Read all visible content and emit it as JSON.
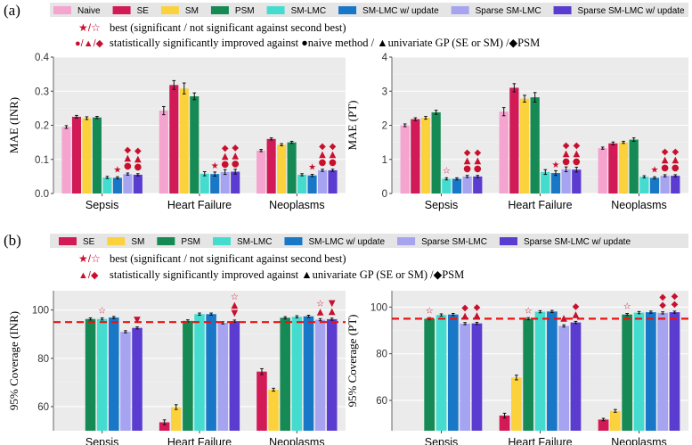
{
  "panel_a": {
    "label": "(a)",
    "legend": [
      {
        "name": "Naive",
        "color": "#f5a3cf"
      },
      {
        "name": "SE",
        "color": "#d11a56"
      },
      {
        "name": "SM",
        "color": "#fbd23c"
      },
      {
        "name": "PSM",
        "color": "#158a55"
      },
      {
        "name": "SM-LMC",
        "color": "#45dcd0"
      },
      {
        "name": "SM-LMC w/ update",
        "color": "#1877c7"
      },
      {
        "name": "Sparse SM-LMC",
        "color": "#a6a3f1"
      },
      {
        "name": "Sparse SM-LMC w/ update",
        "color": "#5a3cd0"
      }
    ],
    "note_best_symbol": "★/☆",
    "note_best": "best (significant / not significant against second best)",
    "note_sig_symbol": "●/▲/◆",
    "note_sig": "statistically significantly improved against ●naive method / ▲univariate GP (SE or SM) /◆PSM"
  },
  "panel_b": {
    "label": "(b)",
    "legend": [
      {
        "name": "SE",
        "color": "#d11a56"
      },
      {
        "name": "SM",
        "color": "#fbd23c"
      },
      {
        "name": "PSM",
        "color": "#158a55"
      },
      {
        "name": "SM-LMC",
        "color": "#45dcd0"
      },
      {
        "name": "SM-LMC w/ update",
        "color": "#1877c7"
      },
      {
        "name": "Sparse SM-LMC",
        "color": "#a6a3f1"
      },
      {
        "name": "Sparse SM-LMC w/ update",
        "color": "#5a3cd0"
      }
    ],
    "note_best_symbol": "★/☆",
    "note_best": "best (significant / not significant against second best)",
    "note_sig_symbol": "▲/◆",
    "note_sig": "statistically significantly improved against ▲univariate GP (SE or SM) /◆PSM"
  },
  "chart_data": [
    {
      "id": "mae_inr",
      "type": "bar",
      "ylabel": "MAE (INR)",
      "ylim": [
        0,
        0.4
      ],
      "yticks": [
        "0.0",
        "0.1",
        "0.2",
        "0.3",
        "0.4"
      ],
      "categories": [
        "Sepsis",
        "Heart Failure",
        "Neoplasms"
      ],
      "series": [
        {
          "name": "Naive",
          "values": [
            0.195,
            0.243,
            0.126
          ],
          "errors": [
            0.004,
            0.012,
            0.002
          ]
        },
        {
          "name": "SE",
          "values": [
            0.225,
            0.318,
            0.16
          ],
          "errors": [
            0.004,
            0.013,
            0.003
          ]
        },
        {
          "name": "SM",
          "values": [
            0.221,
            0.308,
            0.143
          ],
          "errors": [
            0.004,
            0.016,
            0.002
          ]
        },
        {
          "name": "PSM",
          "values": [
            0.223,
            0.285,
            0.15
          ],
          "errors": [
            0.003,
            0.01,
            0.003
          ]
        },
        {
          "name": "SM-LMC",
          "values": [
            0.047,
            0.058,
            0.055
          ],
          "errors": [
            0.002,
            0.006,
            0.002
          ]
        },
        {
          "name": "SM-LMC w/ update",
          "values": [
            0.046,
            0.057,
            0.053
          ],
          "errors": [
            0.002,
            0.006,
            0.002
          ]
        },
        {
          "name": "Sparse SM-LMC",
          "values": [
            0.057,
            0.063,
            0.068
          ],
          "errors": [
            0.002,
            0.007,
            0.002
          ]
        },
        {
          "name": "Sparse SM-LMC w/ update",
          "values": [
            0.055,
            0.064,
            0.068
          ],
          "errors": [
            0.002,
            0.007,
            0.002
          ]
        }
      ],
      "markers": [
        {
          "category": "Sepsis",
          "series": "SM-LMC w/ update",
          "symbols": [
            "★"
          ]
        },
        {
          "category": "Sepsis",
          "series": "Sparse SM-LMC",
          "symbols": [
            "●",
            "▲",
            "◆"
          ]
        },
        {
          "category": "Sepsis",
          "series": "Sparse SM-LMC w/ update",
          "symbols": [
            "●",
            "▲",
            "◆"
          ]
        },
        {
          "category": "Heart Failure",
          "series": "SM-LMC w/ update",
          "symbols": [
            "★"
          ]
        },
        {
          "category": "Heart Failure",
          "series": "Sparse SM-LMC",
          "symbols": [
            "●",
            "▲",
            "◆"
          ]
        },
        {
          "category": "Heart Failure",
          "series": "Sparse SM-LMC w/ update",
          "symbols": [
            "●",
            "▲",
            "◆"
          ]
        },
        {
          "category": "Neoplasms",
          "series": "SM-LMC w/ update",
          "symbols": [
            "★"
          ]
        },
        {
          "category": "Neoplasms",
          "series": "Sparse SM-LMC",
          "symbols": [
            "●",
            "▲",
            "◆"
          ]
        },
        {
          "category": "Neoplasms",
          "series": "Sparse SM-LMC w/ update",
          "symbols": [
            "●",
            "▲",
            "◆"
          ]
        }
      ]
    },
    {
      "id": "mae_pt",
      "type": "bar",
      "ylabel": "MAE (PT)",
      "ylim": [
        0,
        4
      ],
      "yticks": [
        "0",
        "1",
        "2",
        "3",
        "4"
      ],
      "categories": [
        "Sepsis",
        "Heart Failure",
        "Neoplasms"
      ],
      "series": [
        {
          "name": "Naive",
          "values": [
            2.0,
            2.4,
            1.33
          ],
          "errors": [
            0.04,
            0.12,
            0.03
          ]
        },
        {
          "name": "SE",
          "values": [
            2.18,
            3.1,
            1.47
          ],
          "errors": [
            0.04,
            0.12,
            0.04
          ]
        },
        {
          "name": "SM",
          "values": [
            2.22,
            2.78,
            1.5
          ],
          "errors": [
            0.04,
            0.1,
            0.03
          ]
        },
        {
          "name": "PSM",
          "values": [
            2.38,
            2.82,
            1.58
          ],
          "errors": [
            0.06,
            0.14,
            0.05
          ]
        },
        {
          "name": "SM-LMC",
          "values": [
            0.43,
            0.63,
            0.49
          ],
          "errors": [
            0.02,
            0.07,
            0.02
          ]
        },
        {
          "name": "SM-LMC w/ update",
          "values": [
            0.43,
            0.6,
            0.46
          ],
          "errors": [
            0.02,
            0.07,
            0.02
          ]
        },
        {
          "name": "Sparse SM-LMC",
          "values": [
            0.5,
            0.71,
            0.52
          ],
          "errors": [
            0.02,
            0.07,
            0.02
          ]
        },
        {
          "name": "Sparse SM-LMC w/ update",
          "values": [
            0.5,
            0.7,
            0.52
          ],
          "errors": [
            0.02,
            0.07,
            0.02
          ]
        }
      ],
      "markers": [
        {
          "category": "Sepsis",
          "series": "SM-LMC",
          "symbols": [
            "☆"
          ]
        },
        {
          "category": "Sepsis",
          "series": "Sparse SM-LMC",
          "symbols": [
            "●",
            "▲",
            "◆"
          ]
        },
        {
          "category": "Sepsis",
          "series": "Sparse SM-LMC w/ update",
          "symbols": [
            "●",
            "▲",
            "◆"
          ]
        },
        {
          "category": "Heart Failure",
          "series": "SM-LMC w/ update",
          "symbols": [
            "★"
          ]
        },
        {
          "category": "Heart Failure",
          "series": "Sparse SM-LMC",
          "symbols": [
            "●",
            "▲",
            "◆"
          ]
        },
        {
          "category": "Heart Failure",
          "series": "Sparse SM-LMC w/ update",
          "symbols": [
            "●",
            "▲",
            "◆"
          ]
        },
        {
          "category": "Neoplasms",
          "series": "SM-LMC w/ update",
          "symbols": [
            "★"
          ]
        },
        {
          "category": "Neoplasms",
          "series": "Sparse SM-LMC",
          "symbols": [
            "●",
            "▲",
            "◆"
          ]
        },
        {
          "category": "Neoplasms",
          "series": "Sparse SM-LMC w/ update",
          "symbols": [
            "●",
            "▲",
            "◆"
          ]
        }
      ]
    },
    {
      "id": "cov_inr",
      "type": "bar",
      "ylabel": "95% Coverage (INR)",
      "ylim": [
        50,
        108
      ],
      "yticks": [
        "60",
        "80",
        "100"
      ],
      "reference_line": 95,
      "categories": [
        "Sepsis",
        "Heart Failure",
        "Neoplasms"
      ],
      "series": [
        {
          "name": "SE",
          "values": [
            null,
            53.5,
            74.5
          ],
          "errors": [
            0,
            1.0,
            1.2
          ]
        },
        {
          "name": "SM",
          "values": [
            null,
            59.8,
            67.0
          ],
          "errors": [
            0,
            1.0,
            0.6
          ]
        },
        {
          "name": "PSM",
          "values": [
            96.3,
            95.5,
            96.8
          ],
          "errors": [
            0.2,
            0.2,
            0.2
          ]
        },
        {
          "name": "SM-LMC",
          "values": [
            96.3,
            98.3,
            97.2
          ],
          "errors": [
            0.2,
            0.2,
            0.2
          ]
        },
        {
          "name": "SM-LMC w/ update",
          "values": [
            96.9,
            98.3,
            97.4
          ],
          "errors": [
            0.2,
            0.2,
            0.2
          ]
        },
        {
          "name": "Sparse SM-LMC",
          "values": [
            91.0,
            94.7,
            96.0
          ],
          "errors": [
            0.3,
            0.3,
            0.3
          ]
        },
        {
          "name": "Sparse SM-LMC w/ update",
          "values": [
            92.6,
            95.4,
            96.2
          ],
          "errors": [
            0.3,
            0.3,
            0.3
          ]
        }
      ],
      "markers": [
        {
          "category": "Sepsis",
          "series": "SM-LMC",
          "symbols": [
            "☆"
          ]
        },
        {
          "category": "Sepsis",
          "series": "Sparse SM-LMC w/ update",
          "symbols": [
            "▼"
          ]
        },
        {
          "category": "Heart Failure",
          "series": "Sparse SM-LMC w/ update",
          "symbols": [
            "▼",
            "▲",
            "☆"
          ]
        },
        {
          "category": "Neoplasms",
          "series": "Sparse SM-LMC",
          "symbols": [
            "▲",
            "☆"
          ]
        },
        {
          "category": "Neoplasms",
          "series": "Sparse SM-LMC w/ update",
          "symbols": [
            "▲",
            "▼"
          ]
        }
      ]
    },
    {
      "id": "cov_pt",
      "type": "bar",
      "ylabel": "95% Coverage (PT)",
      "ylim": [
        47,
        107
      ],
      "yticks": [
        "60",
        "80",
        "100"
      ],
      "reference_line": 95,
      "categories": [
        "Sepsis",
        "Heart Failure",
        "Neoplasms"
      ],
      "series": [
        {
          "name": "SE",
          "values": [
            null,
            53.5,
            51.8
          ],
          "errors": [
            0,
            1.0,
            0.5
          ]
        },
        {
          "name": "SM",
          "values": [
            null,
            69.8,
            55.5
          ],
          "errors": [
            0,
            1.0,
            0.6
          ]
        },
        {
          "name": "PSM",
          "values": [
            95.0,
            95.0,
            96.8
          ],
          "errors": [
            0.2,
            0.2,
            0.2
          ]
        },
        {
          "name": "SM-LMC",
          "values": [
            96.6,
            98.0,
            97.6
          ],
          "errors": [
            0.2,
            0.2,
            0.2
          ]
        },
        {
          "name": "SM-LMC w/ update",
          "values": [
            96.8,
            98.1,
            97.8
          ],
          "errors": [
            0.2,
            0.2,
            0.2
          ]
        },
        {
          "name": "Sparse SM-LMC",
          "values": [
            92.9,
            91.9,
            97.5
          ],
          "errors": [
            0.3,
            0.3,
            0.3
          ]
        },
        {
          "name": "Sparse SM-LMC w/ update",
          "values": [
            93.0,
            93.4,
            97.8
          ],
          "errors": [
            0.3,
            0.3,
            0.3
          ]
        }
      ],
      "markers": [
        {
          "category": "Sepsis",
          "series": "PSM",
          "symbols": [
            "☆"
          ]
        },
        {
          "category": "Sepsis",
          "series": "Sparse SM-LMC",
          "symbols": [
            "▲",
            "◆"
          ]
        },
        {
          "category": "Sepsis",
          "series": "Sparse SM-LMC w/ update",
          "symbols": [
            "▲",
            "◆"
          ]
        },
        {
          "category": "Heart Failure",
          "series": "PSM",
          "symbols": [
            "☆"
          ]
        },
        {
          "category": "Heart Failure",
          "series": "Sparse SM-LMC",
          "symbols": [
            "▲"
          ]
        },
        {
          "category": "Heart Failure",
          "series": "Sparse SM-LMC w/ update",
          "symbols": [
            "▲",
            "◆"
          ]
        },
        {
          "category": "Neoplasms",
          "series": "PSM",
          "symbols": [
            "☆"
          ]
        },
        {
          "category": "Neoplasms",
          "series": "Sparse SM-LMC",
          "symbols": [
            "◆",
            "◆"
          ]
        },
        {
          "category": "Neoplasms",
          "series": "Sparse SM-LMC w/ update",
          "symbols": [
            "◆",
            "◆"
          ]
        }
      ]
    }
  ]
}
